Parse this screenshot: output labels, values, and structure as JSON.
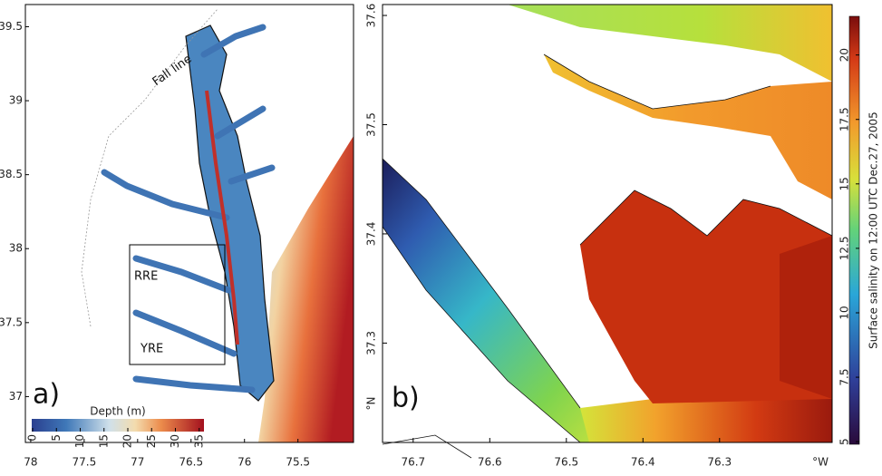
{
  "panel_a": {
    "label": "a)",
    "xticks": [
      78,
      77.5,
      77,
      76.5,
      76,
      75.5
    ],
    "xlim": [
      78.05,
      74.98
    ],
    "yticks": [
      37,
      37.5,
      38,
      38.5,
      39,
      39.5
    ],
    "ylim": [
      36.69,
      39.65
    ],
    "annotations": {
      "fall_line": "Fall line",
      "rre": "RRE",
      "yre": "YRE"
    },
    "colorbar": {
      "label": "Depth (m)",
      "lim": [
        0,
        36
      ],
      "ticks": [
        0,
        5,
        10,
        15,
        20,
        25,
        30,
        35
      ]
    }
  },
  "panel_b": {
    "label": "b)",
    "xticks": [
      76.7,
      76.6,
      76.5,
      76.4,
      76.3
    ],
    "xlim": [
      76.74,
      76.153
    ],
    "x_unit": "°W",
    "yticks": [
      37.3,
      37.4,
      37.5,
      37.6
    ],
    "ylim": [
      37.209,
      37.61
    ],
    "y_unit": "°N",
    "colorbar": {
      "label": "Surface salinity on 12:00 UTC Dec.27, 2005",
      "lim": [
        4.9,
        21.5
      ],
      "ticks": [
        5,
        7.5,
        10,
        12.5,
        15,
        17.5,
        20
      ]
    }
  }
}
